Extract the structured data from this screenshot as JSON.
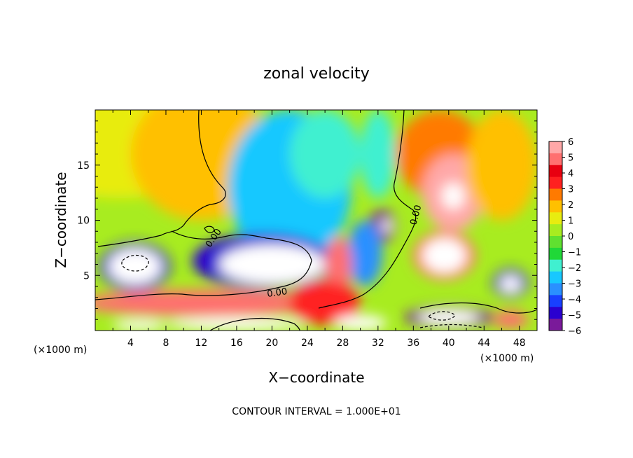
{
  "chart_data": {
    "type": "heatmap",
    "title": "zonal velocity",
    "xlabel": "X−coordinate",
    "ylabel": "Z−coordinate",
    "x_unit_label": "(×1000 m)",
    "y_unit_label": "(×1000 m)",
    "xlim": [
      0,
      50
    ],
    "ylim": [
      0,
      20
    ],
    "x_ticks": [
      "4",
      "8",
      "12",
      "16",
      "20",
      "24",
      "28",
      "32",
      "36",
      "40",
      "44",
      "48"
    ],
    "x_tick_values": [
      4,
      8,
      12,
      16,
      20,
      24,
      28,
      32,
      36,
      40,
      44,
      48
    ],
    "y_ticks": [
      "5",
      "10",
      "15"
    ],
    "y_tick_values": [
      5,
      10,
      15
    ],
    "colorbar": {
      "labels": [
        "6",
        "5",
        "4",
        "3",
        "2",
        "1",
        "0",
        "−1",
        "−2",
        "−3",
        "−4",
        "−5",
        "−6"
      ],
      "range": [
        -6,
        6
      ],
      "colors": [
        "#7a1a9a",
        "#2a00d0",
        "#1840ff",
        "#2a90ff",
        "#18c8ff",
        "#40f0d0",
        "#20d838",
        "#60e030",
        "#a8ec20",
        "#e8ec10",
        "#ffc000",
        "#ff7a00",
        "#ff2020",
        "#e80010",
        "#ff7070",
        "#ffa8a8"
      ],
      "over_color": "#ffffff",
      "under_color": "#ffffff"
    },
    "contour_label": "0.00",
    "contour_interval_text": "CONTOUR INTERVAL = 1.000E+01",
    "regions": [
      {
        "x": 3,
        "z": 17,
        "rx": 12,
        "rz": 5,
        "v": 1.2
      },
      {
        "x": 12,
        "z": 16,
        "rx": 8,
        "rz": 6,
        "v": 1.5
      },
      {
        "x": 22,
        "z": 13,
        "rx": 7,
        "rz": 7,
        "v": -2.6
      },
      {
        "x": 26,
        "z": 16,
        "rx": 4,
        "rz": 4,
        "v": -2.0
      },
      {
        "x": 32,
        "z": 16,
        "rx": 2,
        "rz": 4,
        "v": -1.8
      },
      {
        "x": 32.5,
        "z": 9.5,
        "rx": 1.5,
        "rz": 1.5,
        "v": -5.5
      },
      {
        "x": 33,
        "z": 9.5,
        "rx": 0.6,
        "rz": 0.6,
        "v": 6.5
      },
      {
        "x": 39,
        "z": 16,
        "rx": 5,
        "rz": 4,
        "v": 2.5
      },
      {
        "x": 40.5,
        "z": 12.5,
        "rx": 3.5,
        "rz": 3.5,
        "v": 5.5
      },
      {
        "x": 40.5,
        "z": 12.2,
        "rx": 1.3,
        "rz": 1.2,
        "v": 7
      },
      {
        "x": 46,
        "z": 15,
        "rx": 4,
        "rz": 5,
        "v": 1.5
      },
      {
        "x": 19,
        "z": 6.3,
        "rx": 8,
        "rz": 2.5,
        "v": -4.8
      },
      {
        "x": 20,
        "z": 6.0,
        "rx": 6,
        "rz": 1.8,
        "v": -7
      },
      {
        "x": 4.5,
        "z": 5.8,
        "rx": 4,
        "rz": 2.2,
        "v": -5.2
      },
      {
        "x": 4.5,
        "z": 5.8,
        "rx": 3,
        "rz": 1.6,
        "v": -7
      },
      {
        "x": 30.5,
        "z": 7,
        "rx": 2,
        "rz": 3,
        "v": -3.5
      },
      {
        "x": 27.5,
        "z": 6,
        "rx": 1.5,
        "rz": 2.5,
        "v": 4.5
      },
      {
        "x": 39.5,
        "z": 6.8,
        "rx": 3.5,
        "rz": 2.2,
        "v": 5
      },
      {
        "x": 39.5,
        "z": 6.8,
        "rx": 2.5,
        "rz": 1.6,
        "v": 7
      },
      {
        "x": 47,
        "z": 4.3,
        "rx": 2,
        "rz": 1.3,
        "v": -5
      },
      {
        "x": 47,
        "z": 4.2,
        "rx": 1.2,
        "rz": 0.8,
        "v": -7
      },
      {
        "x": 12,
        "z": 2.5,
        "rx": 14,
        "rz": 1.2,
        "v": 4.5
      },
      {
        "x": 26,
        "z": 2.5,
        "rx": 4,
        "rz": 2,
        "v": 3.5
      },
      {
        "x": 40,
        "z": 1.2,
        "rx": 5,
        "rz": 1.0,
        "v": -5.5
      },
      {
        "x": 40,
        "z": 1.2,
        "rx": 3.5,
        "rz": 0.7,
        "v": -7
      },
      {
        "x": 16,
        "z": 0.6,
        "rx": 8,
        "rz": 0.6,
        "v": 7
      },
      {
        "x": 5,
        "z": 0.5,
        "rx": 3,
        "rz": 0.5,
        "v": 7
      },
      {
        "x": 30,
        "z": 0.7,
        "rx": 3,
        "rz": 0.7,
        "v": 7
      },
      {
        "x": 47,
        "z": 1.0,
        "rx": 2,
        "rz": 0.8,
        "v": 5
      }
    ]
  }
}
